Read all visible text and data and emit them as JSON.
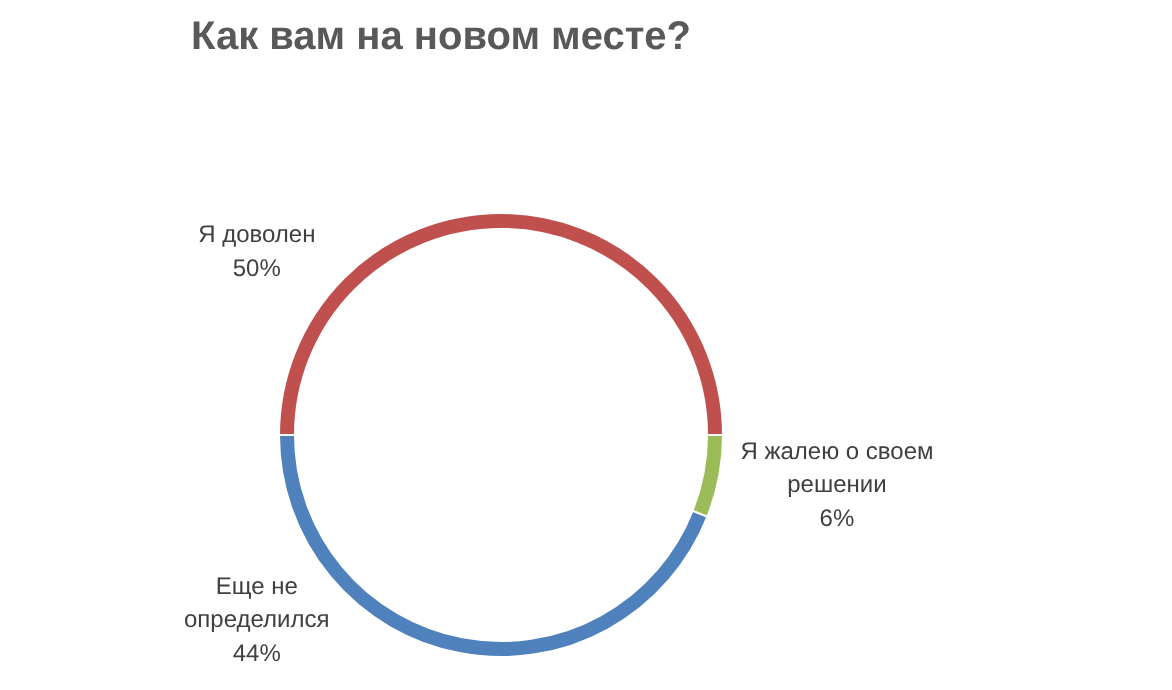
{
  "chart_data": {
    "type": "donut",
    "title": "Как вам на новом месте?",
    "categories": [
      "Я доволен",
      "Я жалею о своем решении",
      "Еще не определился"
    ],
    "values": [
      50,
      6,
      44
    ],
    "value_labels": [
      "50%",
      "6%",
      "44%"
    ],
    "colors": [
      "#c0504d",
      "#9bbb59",
      "#4f81bd"
    ]
  }
}
